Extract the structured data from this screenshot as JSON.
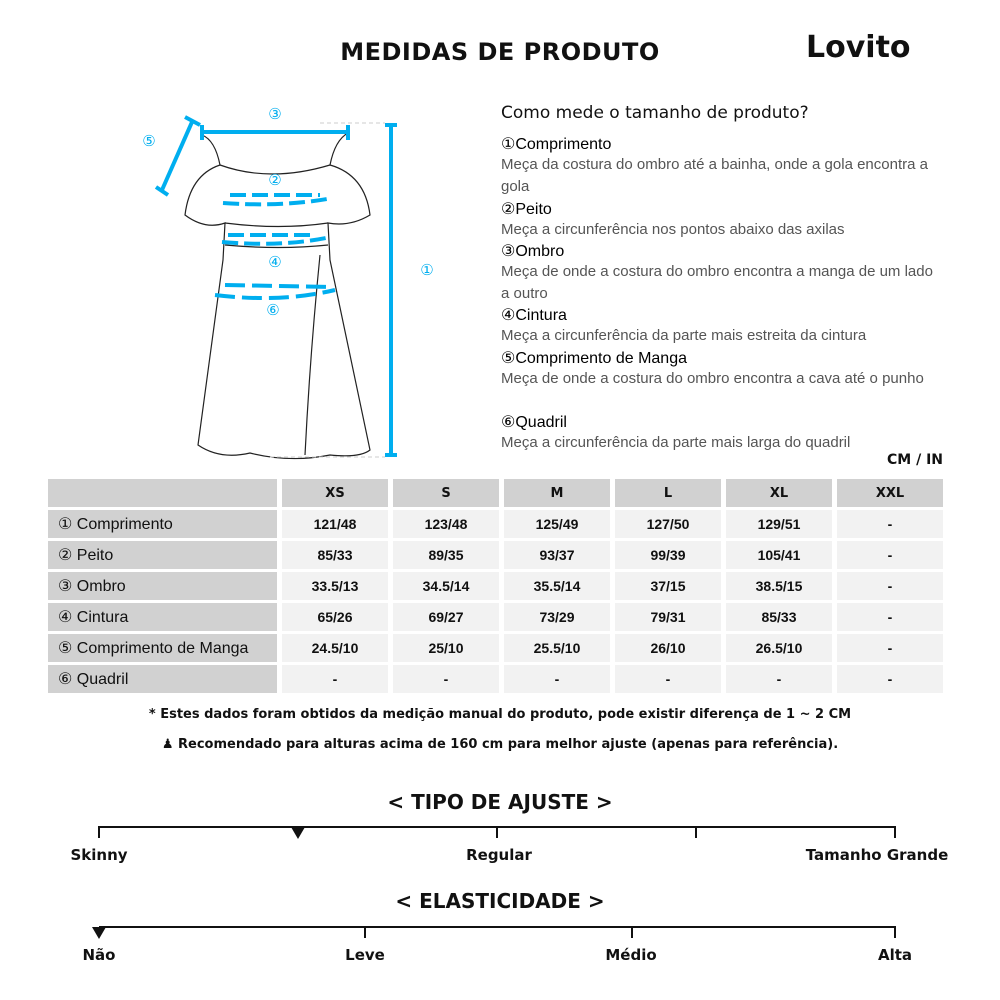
{
  "title": "MEDIDAS DE PRODUTO",
  "brand": "Lovito",
  "diagram": {
    "accent": "#00aeef",
    "markers": [
      "①",
      "②",
      "③",
      "④",
      "⑤",
      "⑥"
    ]
  },
  "howto": {
    "title": "Como mede o tamanho de produto?",
    "items": [
      {
        "h": "①Comprimento",
        "d": "Meça da costura do ombro até a bainha, onde a gola encontra a gola"
      },
      {
        "h": "②Peito",
        "d": "Meça a circunferência nos pontos abaixo das axilas"
      },
      {
        "h": "③Ombro",
        "d": "Meça de onde a costura do ombro encontra a manga de um lado a outro"
      },
      {
        "h": "④Cintura",
        "d": "Meça a circunferência da parte mais estreita da cintura"
      },
      {
        "h": "⑤Comprimento de Manga",
        "d": "Meça de onde a costura do ombro encontra a cava até o punho"
      },
      {
        "h": "⑥Quadril",
        "d": "Meça a circunferência da parte mais larga do quadril"
      }
    ]
  },
  "unit": "CM / IN",
  "table": {
    "sizes": [
      "XS",
      "S",
      "M",
      "L",
      "XL",
      "XXL"
    ],
    "rows": [
      {
        "label": "① Comprimento",
        "values": [
          "121/48",
          "123/48",
          "125/49",
          "127/50",
          "129/51",
          "-"
        ]
      },
      {
        "label": "② Peito",
        "values": [
          "85/33",
          "89/35",
          "93/37",
          "99/39",
          "105/41",
          "-"
        ]
      },
      {
        "label": "③ Ombro",
        "values": [
          "33.5/13",
          "34.5/14",
          "35.5/14",
          "37/15",
          "38.5/15",
          "-"
        ]
      },
      {
        "label": "④ Cintura",
        "values": [
          "65/26",
          "69/27",
          "73/29",
          "79/31",
          "85/33",
          "-"
        ]
      },
      {
        "label": "⑤ Comprimento de Manga",
        "values": [
          "24.5/10",
          "25/10",
          "25.5/10",
          "26/10",
          "26.5/10",
          "-"
        ]
      },
      {
        "label": "⑥ Quadril",
        "values": [
          "-",
          "-",
          "-",
          "-",
          "-",
          "-"
        ]
      }
    ]
  },
  "notes": [
    "* Estes dados foram obtidos da medição manual do produto, pode existir diferença de 1 ~ 2 CM",
    "Recomendado para alturas acima de 160 cm para melhor ajuste (apenas para referência)."
  ],
  "fit": {
    "title": "< TIPO DE AJUSTE >",
    "labels": [
      "Skinny",
      "Regular",
      "Tamanho Grande"
    ],
    "level": 0.25
  },
  "elasticity": {
    "title": "< ELASTICIDADE >",
    "labels": [
      "Não",
      "Leve",
      "Médio",
      "Alta"
    ],
    "level": 0
  }
}
